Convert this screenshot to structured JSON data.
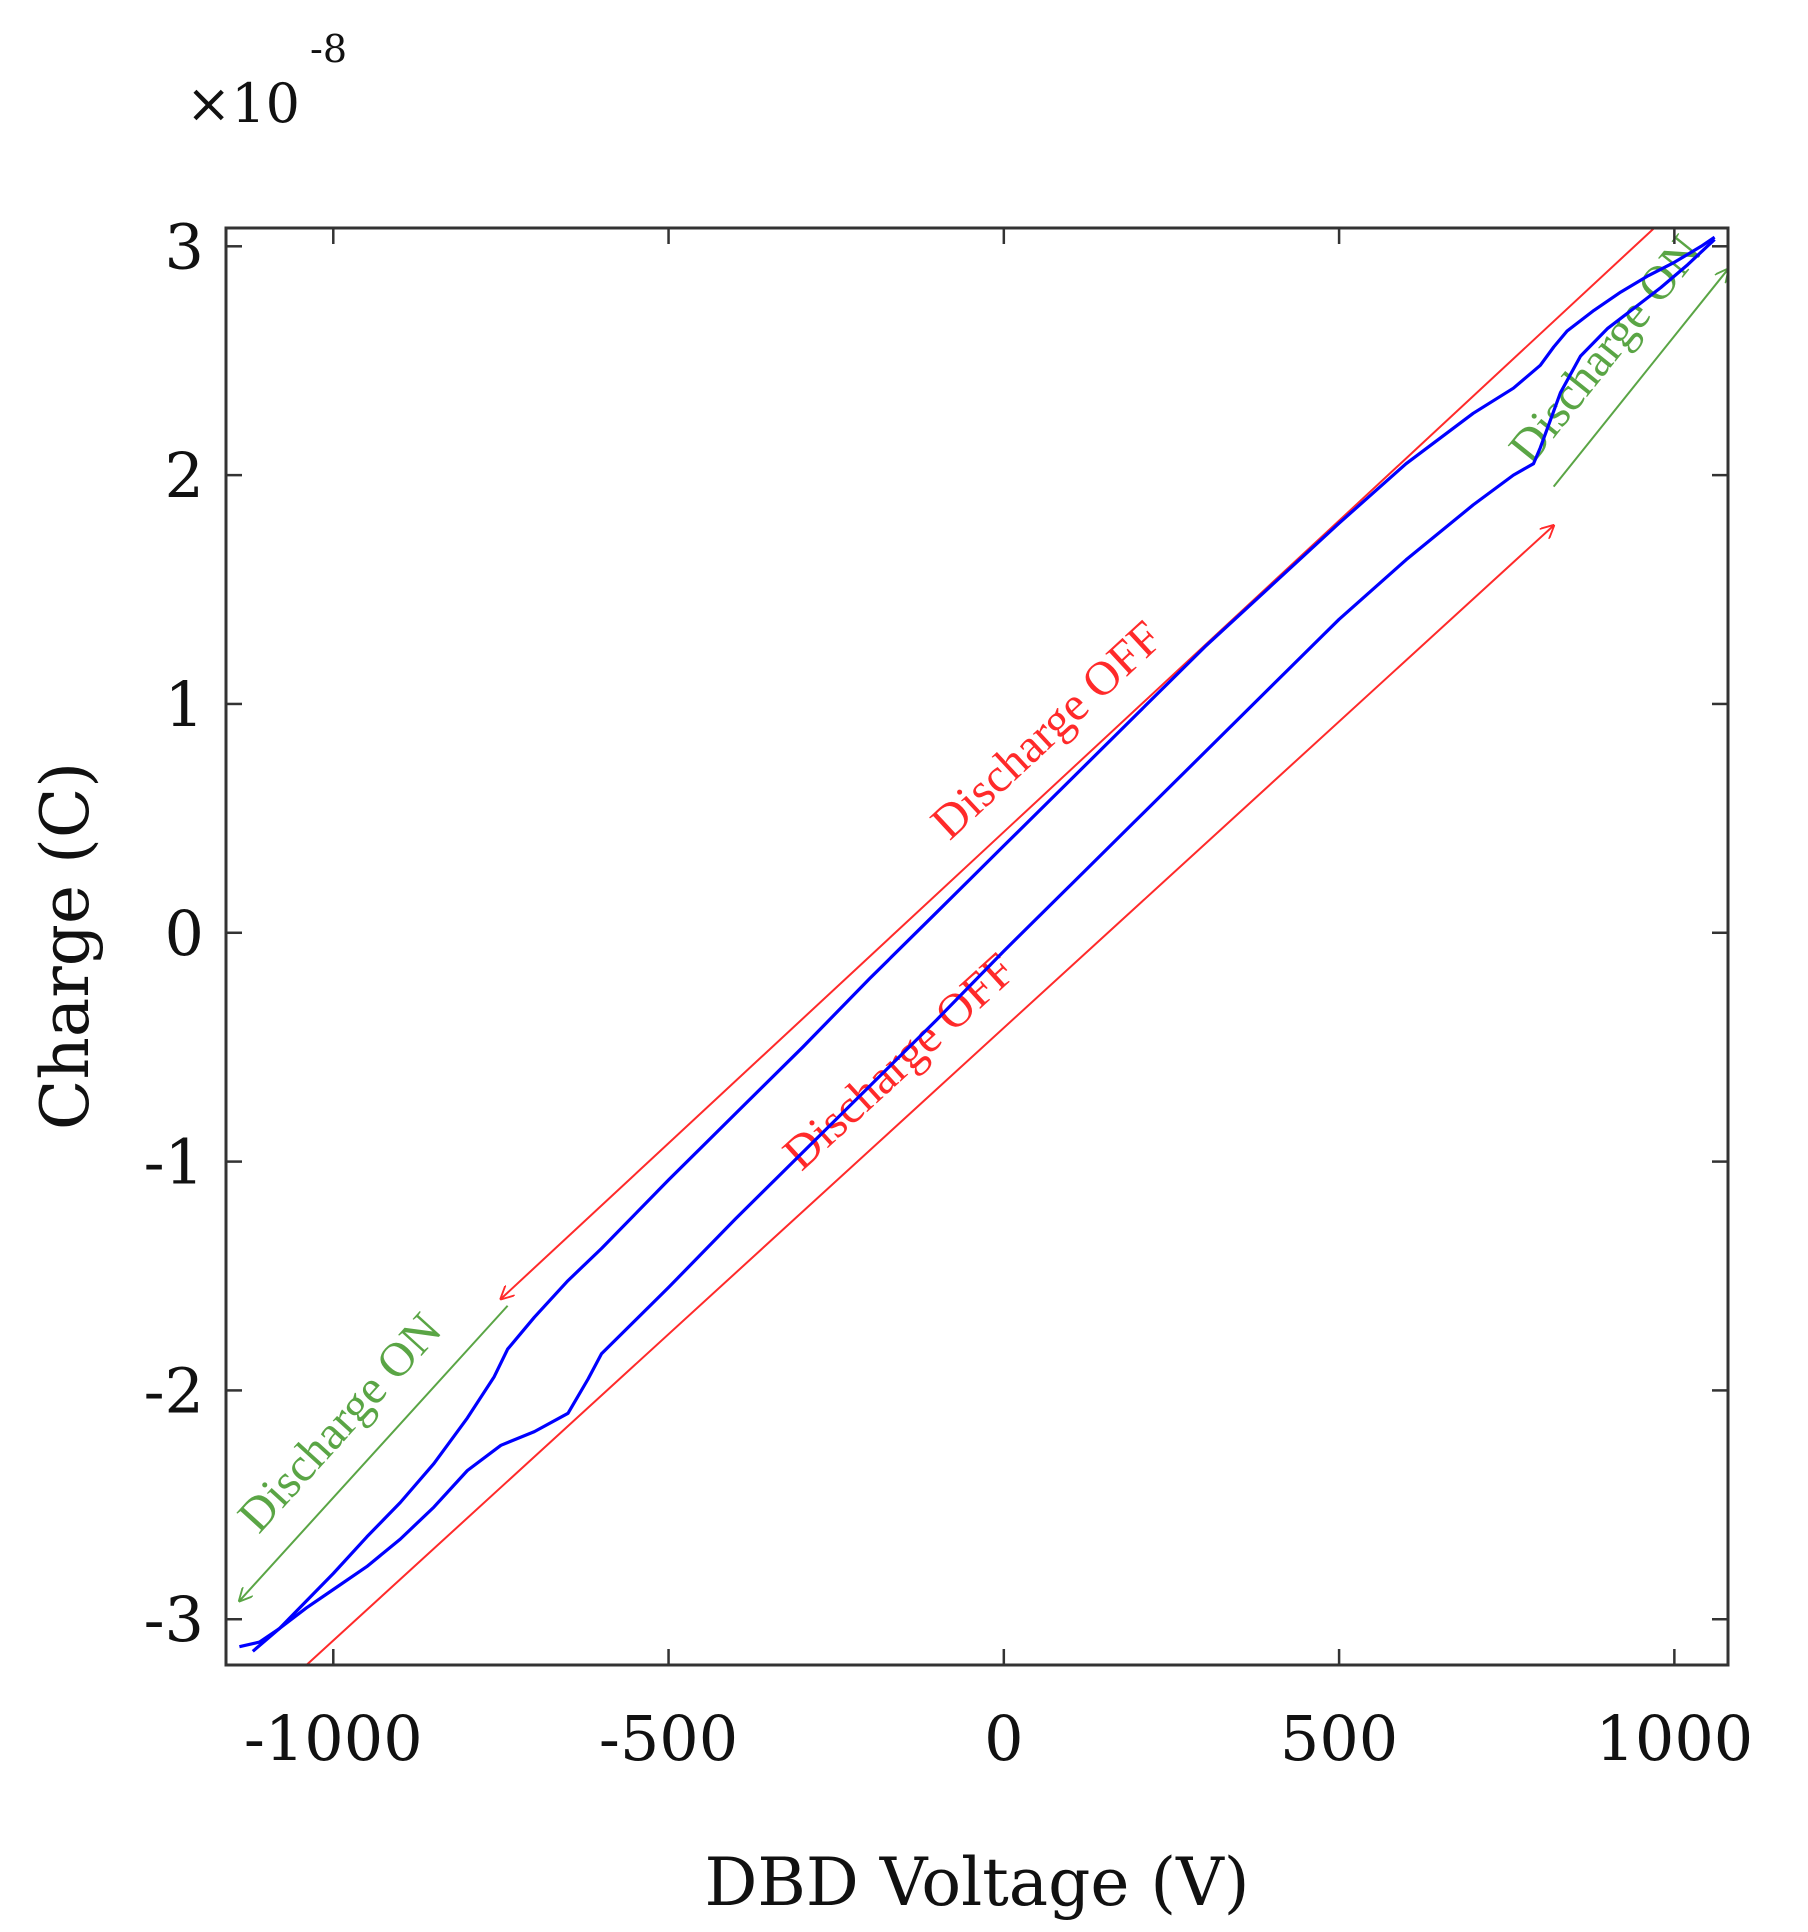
{
  "chart_data": {
    "type": "line",
    "xlabel": "DBD Voltage (V)",
    "ylabel": "Charge (C)",
    "y_multiplier": {
      "base": "×10",
      "exponent": "-8"
    },
    "xlim": [
      -1160,
      1080
    ],
    "ylim": [
      -3.2,
      3.08
    ],
    "x_ticks": [
      -1000,
      -500,
      0,
      500,
      1000
    ],
    "y_ticks": [
      -3,
      -2,
      -1,
      0,
      1,
      2,
      3
    ],
    "x_tick_labels": [
      "-1000",
      "-500",
      "0",
      "500",
      "1000"
    ],
    "y_tick_labels": [
      "-3",
      "-2",
      "-1",
      "0",
      "1",
      "2",
      "3"
    ],
    "grid": false,
    "series": [
      {
        "color": "#0000ff",
        "x": [
          -1140,
          -1110,
          -1080,
          -1040,
          -1000,
          -950,
          -900,
          -850,
          -800,
          -760,
          -740,
          -720,
          -700,
          -650,
          -600,
          -500,
          -400,
          -300,
          -200,
          -100,
          0,
          100,
          200,
          300,
          400,
          500,
          600,
          700,
          760,
          800,
          820,
          840,
          880,
          920,
          960,
          1000,
          1040,
          1060
        ],
        "y": [
          -3.12,
          -3.1,
          -3.04,
          -2.92,
          -2.8,
          -2.64,
          -2.49,
          -2.32,
          -2.12,
          -1.94,
          -1.82,
          -1.75,
          -1.68,
          -1.52,
          -1.38,
          -1.08,
          -0.79,
          -0.5,
          -0.2,
          0.09,
          0.38,
          0.67,
          0.96,
          1.25,
          1.52,
          1.79,
          2.05,
          2.27,
          2.38,
          2.48,
          2.56,
          2.63,
          2.72,
          2.8,
          2.87,
          2.93,
          3.0,
          3.04
        ]
      },
      {
        "color": "#0000ff",
        "x": [
          -1120,
          -1080,
          -1040,
          -1000,
          -950,
          -900,
          -850,
          -800,
          -750,
          -700,
          -650,
          -620,
          -600,
          -500,
          -400,
          -300,
          -200,
          -100,
          0,
          100,
          200,
          300,
          400,
          500,
          600,
          700,
          760,
          790,
          800,
          810,
          830,
          860,
          900,
          940,
          980,
          1020,
          1060
        ],
        "y": [
          -3.14,
          -3.04,
          -2.95,
          -2.87,
          -2.77,
          -2.65,
          -2.51,
          -2.35,
          -2.24,
          -2.18,
          -2.1,
          -1.95,
          -1.84,
          -1.55,
          -1.25,
          -0.96,
          -0.67,
          -0.38,
          -0.08,
          0.21,
          0.5,
          0.79,
          1.08,
          1.37,
          1.63,
          1.87,
          2.0,
          2.05,
          2.12,
          2.2,
          2.36,
          2.52,
          2.64,
          2.73,
          2.82,
          2.92,
          3.03
        ]
      }
    ],
    "annotations": [
      {
        "text": "Discharge OFF",
        "color": "#ff2a2a",
        "from": [
          970,
          3.08
        ],
        "to": [
          -750,
          -1.6
        ]
      },
      {
        "text": "Discharge OFF",
        "color": "#ff2a2a",
        "from": [
          -1040,
          -3.2
        ],
        "to": [
          820,
          1.78
        ]
      },
      {
        "text": "Discharge ON",
        "color": "#5aa545",
        "from": [
          -740,
          -1.63
        ],
        "to": [
          -1140,
          -2.92
        ]
      },
      {
        "text": "Discharge ON",
        "color": "#5aa545",
        "from": [
          820,
          1.95
        ],
        "to": [
          1080,
          2.9
        ]
      }
    ]
  }
}
